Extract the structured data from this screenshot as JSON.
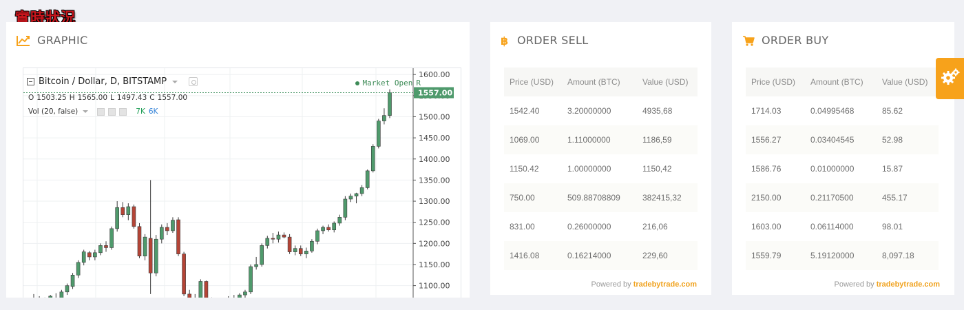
{
  "page": {
    "heading": "實時狀況"
  },
  "graphic": {
    "title": "GRAPHIC",
    "chart": {
      "symbol": "Bitcoin / Dollar, D, BITSTAMP",
      "market_status": "Market Open",
      "market_status_suffix": "R",
      "ohlc": {
        "o_label": "O",
        "o": "1503.25",
        "h_label": "H",
        "h": "1565.00",
        "l_label": "L",
        "l": "1497.43",
        "c_label": "C",
        "c": "1557.00"
      },
      "volume": {
        "label": "Vol (20, false)",
        "v1": "7K",
        "v2": "6K"
      }
    }
  },
  "chart_data": {
    "type": "candlestick",
    "title": "Bitcoin / Dollar, D, BITSTAMP",
    "ylim": [
      1070,
      1615
    ],
    "y_ticks": [
      "1600.00",
      "1550.00",
      "1500.00",
      "1450.00",
      "1400.00",
      "1350.00",
      "1300.00",
      "1250.00",
      "1200.00",
      "1150.00",
      "1100.00"
    ],
    "last_price": "1557.00",
    "grid": true,
    "colors": {
      "up": "#4f9a6c",
      "down": "#b54436",
      "last_price_bg": "#4f9a6c"
    },
    "candles": [
      {
        "o": 1060,
        "h": 1080,
        "l": 1050,
        "c": 1065
      },
      {
        "o": 1062,
        "h": 1075,
        "l": 1045,
        "c": 1055
      },
      {
        "o": 1060,
        "h": 1072,
        "l": 1050,
        "c": 1068
      },
      {
        "o": 1065,
        "h": 1078,
        "l": 1058,
        "c": 1075
      },
      {
        "o": 1070,
        "h": 1082,
        "l": 1060,
        "c": 1066
      },
      {
        "o": 1068,
        "h": 1090,
        "l": 1062,
        "c": 1085
      },
      {
        "o": 1085,
        "h": 1105,
        "l": 1078,
        "c": 1100
      },
      {
        "o": 1098,
        "h": 1130,
        "l": 1092,
        "c": 1125
      },
      {
        "o": 1125,
        "h": 1160,
        "l": 1118,
        "c": 1155
      },
      {
        "o": 1155,
        "h": 1185,
        "l": 1148,
        "c": 1180
      },
      {
        "o": 1178,
        "h": 1182,
        "l": 1160,
        "c": 1168
      },
      {
        "o": 1168,
        "h": 1185,
        "l": 1160,
        "c": 1178
      },
      {
        "o": 1178,
        "h": 1200,
        "l": 1172,
        "c": 1195
      },
      {
        "o": 1195,
        "h": 1205,
        "l": 1180,
        "c": 1190
      },
      {
        "o": 1190,
        "h": 1240,
        "l": 1185,
        "c": 1235
      },
      {
        "o": 1235,
        "h": 1300,
        "l": 1228,
        "c": 1285
      },
      {
        "o": 1285,
        "h": 1298,
        "l": 1262,
        "c": 1268
      },
      {
        "o": 1268,
        "h": 1295,
        "l": 1255,
        "c": 1287
      },
      {
        "o": 1287,
        "h": 1292,
        "l": 1235,
        "c": 1240
      },
      {
        "o": 1240,
        "h": 1248,
        "l": 1165,
        "c": 1170
      },
      {
        "o": 1170,
        "h": 1222,
        "l": 1160,
        "c": 1215
      },
      {
        "o": 1212,
        "h": 1350,
        "l": 1080,
        "c": 1130
      },
      {
        "o": 1130,
        "h": 1220,
        "l": 1122,
        "c": 1210
      },
      {
        "o": 1210,
        "h": 1245,
        "l": 1200,
        "c": 1238
      },
      {
        "o": 1238,
        "h": 1248,
        "l": 1220,
        "c": 1230
      },
      {
        "o": 1230,
        "h": 1262,
        "l": 1225,
        "c": 1255
      },
      {
        "o": 1256,
        "h": 1262,
        "l": 1170,
        "c": 1175
      },
      {
        "o": 1175,
        "h": 1180,
        "l": 1075,
        "c": 1080
      },
      {
        "o": 1080,
        "h": 1090,
        "l": 1060,
        "c": 1070
      },
      {
        "o": 1070,
        "h": 1080,
        "l": 1040,
        "c": 1050
      },
      {
        "o": 1050,
        "h": 1115,
        "l": 1045,
        "c": 1110
      },
      {
        "o": 1110,
        "h": 1112,
        "l": 1060,
        "c": 1065
      },
      {
        "o": 1065,
        "h": 1072,
        "l": 1040,
        "c": 1048
      },
      {
        "o": 1048,
        "h": 1060,
        "l": 1035,
        "c": 1055
      },
      {
        "o": 1055,
        "h": 1068,
        "l": 1042,
        "c": 1062
      },
      {
        "o": 1060,
        "h": 1075,
        "l": 1050,
        "c": 1070
      },
      {
        "o": 1068,
        "h": 1078,
        "l": 1058,
        "c": 1065
      },
      {
        "o": 1065,
        "h": 1082,
        "l": 1060,
        "c": 1078
      },
      {
        "o": 1078,
        "h": 1090,
        "l": 1070,
        "c": 1085
      },
      {
        "o": 1085,
        "h": 1150,
        "l": 1080,
        "c": 1145
      },
      {
        "o": 1145,
        "h": 1168,
        "l": 1138,
        "c": 1150
      },
      {
        "o": 1150,
        "h": 1200,
        "l": 1145,
        "c": 1195
      },
      {
        "o": 1195,
        "h": 1218,
        "l": 1188,
        "c": 1212
      },
      {
        "o": 1212,
        "h": 1225,
        "l": 1200,
        "c": 1210
      },
      {
        "o": 1210,
        "h": 1228,
        "l": 1202,
        "c": 1220
      },
      {
        "o": 1220,
        "h": 1226,
        "l": 1212,
        "c": 1215
      },
      {
        "o": 1215,
        "h": 1222,
        "l": 1175,
        "c": 1180
      },
      {
        "o": 1180,
        "h": 1195,
        "l": 1172,
        "c": 1188
      },
      {
        "o": 1188,
        "h": 1195,
        "l": 1170,
        "c": 1175
      },
      {
        "o": 1175,
        "h": 1190,
        "l": 1165,
        "c": 1182
      },
      {
        "o": 1182,
        "h": 1210,
        "l": 1178,
        "c": 1205
      },
      {
        "o": 1205,
        "h": 1235,
        "l": 1198,
        "c": 1230
      },
      {
        "o": 1230,
        "h": 1242,
        "l": 1222,
        "c": 1238
      },
      {
        "o": 1238,
        "h": 1245,
        "l": 1228,
        "c": 1232
      },
      {
        "o": 1232,
        "h": 1252,
        "l": 1226,
        "c": 1248
      },
      {
        "o": 1248,
        "h": 1268,
        "l": 1242,
        "c": 1262
      },
      {
        "o": 1262,
        "h": 1312,
        "l": 1255,
        "c": 1305
      },
      {
        "o": 1305,
        "h": 1318,
        "l": 1298,
        "c": 1312
      },
      {
        "o": 1312,
        "h": 1320,
        "l": 1295,
        "c": 1318
      },
      {
        "o": 1318,
        "h": 1338,
        "l": 1312,
        "c": 1332
      },
      {
        "o": 1332,
        "h": 1375,
        "l": 1328,
        "c": 1372
      },
      {
        "o": 1372,
        "h": 1435,
        "l": 1368,
        "c": 1430
      },
      {
        "o": 1430,
        "h": 1495,
        "l": 1425,
        "c": 1490
      },
      {
        "o": 1490,
        "h": 1520,
        "l": 1482,
        "c": 1503
      },
      {
        "o": 1503,
        "h": 1565,
        "l": 1497,
        "c": 1557
      }
    ]
  },
  "order_sell": {
    "title": "ORDER SELL",
    "columns": [
      "Price (USD)",
      "Amount (BTC)",
      "Value (USD)"
    ],
    "rows": [
      [
        "1542.40",
        "3.20000000",
        "4935,68"
      ],
      [
        "1069.00",
        "1.11000000",
        "1186,59"
      ],
      [
        "1150.42",
        "1.00000000",
        "1150,42"
      ],
      [
        "750.00",
        "509.88708809",
        "382415,32"
      ],
      [
        "831.00",
        "0.26000000",
        "216,06"
      ],
      [
        "1416.08",
        "0.16214000",
        "229,60"
      ]
    ],
    "powered_prefix": "Powered by",
    "powered_brand": "tradebytrade.com"
  },
  "order_buy": {
    "title": "ORDER BUY",
    "columns": [
      "Price (USD)",
      "Amount (BTC)",
      "Value (USD)"
    ],
    "rows": [
      [
        "1714.03",
        "0.04995468",
        "85.62"
      ],
      [
        "1556.27",
        "0.03404545",
        "52.98"
      ],
      [
        "1586.76",
        "0.01000000",
        "15.87"
      ],
      [
        "2150.00",
        "0.21170500",
        "455.17"
      ],
      [
        "1603.00",
        "0.06114000",
        "98.01"
      ],
      [
        "1559.79",
        "5.19120000",
        "8,097.18"
      ]
    ],
    "powered_prefix": "Powered by",
    "powered_brand": "tradebytrade.com"
  },
  "icons": {
    "graphic": "line-chart-icon",
    "sell": "bitcoin-icon",
    "buy": "shopping-cart-icon",
    "settings": "gear-icon"
  },
  "colors": {
    "accent": "#f7a21b",
    "heading": "#c8161d"
  }
}
